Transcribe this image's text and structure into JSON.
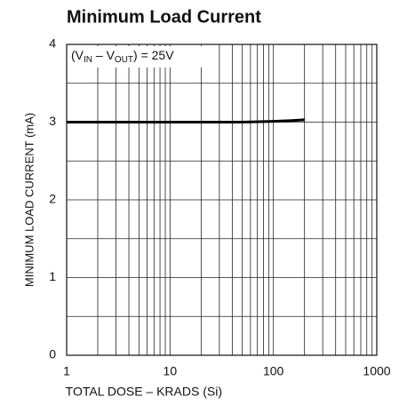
{
  "chart_data": {
    "type": "line",
    "title": "Minimum Load Current",
    "x_label": "TOTAL DOSE – KRADS (Si)",
    "y_label": "MINIMUM LOAD CURRENT (mA)",
    "annotation_parts": [
      "(V",
      "IN",
      " – V",
      "OUT",
      ") = 25V"
    ],
    "x_log": true,
    "xlim": [
      1,
      1000
    ],
    "xticks": [
      1,
      10,
      100,
      1000
    ],
    "xgrid_minor": [
      2,
      3,
      4,
      5,
      6,
      7,
      8,
      9,
      20,
      30,
      40,
      50,
      60,
      70,
      80,
      90,
      200,
      300,
      400,
      500,
      600,
      700,
      800,
      900
    ],
    "ylim": [
      0,
      4
    ],
    "yticks": [
      0,
      1,
      2,
      3,
      4
    ],
    "ygrid_minor": [
      0.5,
      1.5,
      2.5,
      3.5
    ],
    "grid": true,
    "series": [
      {
        "color": "#000000",
        "x": [
          1,
          2,
          5,
          10,
          20,
          50,
          100,
          150,
          200
        ],
        "values": [
          3.0,
          3.0,
          3.0,
          3.0,
          3.0,
          3.0,
          3.01,
          3.02,
          3.03
        ]
      }
    ]
  }
}
